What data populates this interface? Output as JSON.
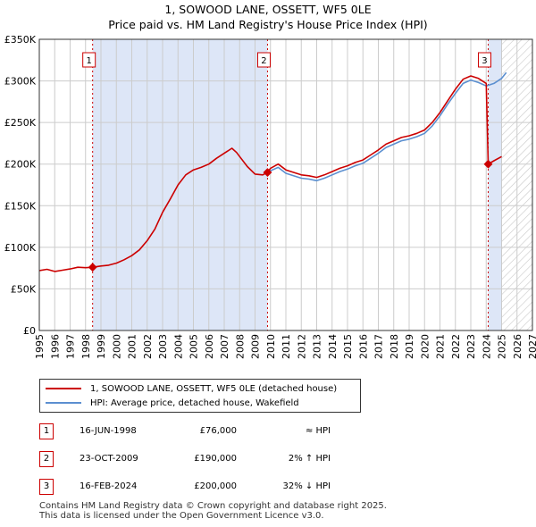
{
  "chart_data": {
    "type": "line",
    "title": "1, SOWOOD LANE, OSSETT, WF5 0LE",
    "subtitle": "Price paid vs. HM Land Registry's House Price Index (HPI)",
    "xlim": [
      1995,
      2027
    ],
    "ylim": [
      0,
      350000
    ],
    "y_ticks": [
      {
        "value": 0,
        "label": "£0"
      },
      {
        "value": 50000,
        "label": "£50K"
      },
      {
        "value": 100000,
        "label": "£100K"
      },
      {
        "value": 150000,
        "label": "£150K"
      },
      {
        "value": 200000,
        "label": "£200K"
      },
      {
        "value": 250000,
        "label": "£250K"
      },
      {
        "value": 300000,
        "label": "£300K"
      },
      {
        "value": 350000,
        "label": "£350K"
      }
    ],
    "x_ticks": [
      "1995",
      "1996",
      "1997",
      "1998",
      "1999",
      "2000",
      "2001",
      "2002",
      "2003",
      "2004",
      "2005",
      "2006",
      "2007",
      "2008",
      "2009",
      "2010",
      "2011",
      "2012",
      "2013",
      "2014",
      "2015",
      "2016",
      "2017",
      "2018",
      "2019",
      "2020",
      "2021",
      "2022",
      "2023",
      "2024",
      "2025",
      "2026",
      "2027"
    ],
    "shaded_regions": [
      {
        "from": 1998.46,
        "to": 2009.81
      },
      {
        "from": 2024.13,
        "to": 2025.0
      }
    ],
    "hatched_future_from": 2025.0,
    "series": [
      {
        "name": "1, SOWOOD LANE, OSSETT, WF5 0LE (detached house)",
        "color": "#cc0000",
        "points": [
          [
            1995.0,
            72000
          ],
          [
            1995.5,
            73500
          ],
          [
            1996.0,
            71000
          ],
          [
            1996.5,
            72500
          ],
          [
            1997.0,
            74000
          ],
          [
            1997.5,
            76000
          ],
          [
            1998.0,
            75500
          ],
          [
            1998.46,
            76000
          ],
          [
            1999.0,
            77500
          ],
          [
            1999.5,
            78500
          ],
          [
            2000.0,
            81000
          ],
          [
            2000.5,
            85000
          ],
          [
            2001.0,
            90000
          ],
          [
            2001.5,
            97000
          ],
          [
            2002.0,
            108000
          ],
          [
            2002.5,
            122000
          ],
          [
            2003.0,
            142000
          ],
          [
            2003.5,
            158000
          ],
          [
            2004.0,
            175000
          ],
          [
            2004.5,
            187000
          ],
          [
            2005.0,
            193000
          ],
          [
            2005.5,
            196000
          ],
          [
            2006.0,
            200000
          ],
          [
            2006.5,
            207000
          ],
          [
            2007.0,
            213000
          ],
          [
            2007.5,
            219000
          ],
          [
            2007.8,
            214000
          ],
          [
            2008.0,
            209000
          ],
          [
            2008.5,
            197000
          ],
          [
            2009.0,
            188000
          ],
          [
            2009.5,
            187000
          ],
          [
            2009.81,
            190000
          ],
          [
            2010.0,
            195000
          ],
          [
            2010.5,
            200000
          ],
          [
            2011.0,
            193000
          ],
          [
            2011.5,
            190000
          ],
          [
            2012.0,
            187000
          ],
          [
            2012.5,
            186000
          ],
          [
            2013.0,
            184000
          ],
          [
            2013.5,
            187000
          ],
          [
            2014.0,
            191000
          ],
          [
            2014.5,
            195000
          ],
          [
            2015.0,
            198000
          ],
          [
            2015.5,
            202000
          ],
          [
            2016.0,
            205000
          ],
          [
            2016.5,
            211000
          ],
          [
            2017.0,
            217000
          ],
          [
            2017.5,
            224000
          ],
          [
            2018.0,
            228000
          ],
          [
            2018.5,
            232000
          ],
          [
            2019.0,
            234000
          ],
          [
            2019.5,
            237000
          ],
          [
            2020.0,
            241000
          ],
          [
            2020.5,
            250000
          ],
          [
            2021.0,
            262000
          ],
          [
            2021.5,
            276000
          ],
          [
            2022.0,
            290000
          ],
          [
            2022.5,
            302000
          ],
          [
            2023.0,
            306000
          ],
          [
            2023.5,
            303000
          ],
          [
            2024.0,
            297000
          ],
          [
            2024.13,
            200000
          ],
          [
            2024.5,
            204000
          ],
          [
            2025.0,
            209000
          ]
        ]
      },
      {
        "name": "HPI: Average price, detached house, Wakefield",
        "color": "#5b8fd0",
        "points": [
          [
            2009.81,
            186000
          ],
          [
            2010.0,
            192000
          ],
          [
            2010.5,
            196000
          ],
          [
            2011.0,
            189000
          ],
          [
            2011.5,
            186000
          ],
          [
            2012.0,
            183000
          ],
          [
            2012.5,
            182000
          ],
          [
            2013.0,
            180000
          ],
          [
            2013.5,
            183000
          ],
          [
            2014.0,
            187000
          ],
          [
            2014.5,
            191000
          ],
          [
            2015.0,
            194000
          ],
          [
            2015.5,
            198000
          ],
          [
            2016.0,
            201000
          ],
          [
            2016.5,
            207000
          ],
          [
            2017.0,
            213000
          ],
          [
            2017.5,
            220000
          ],
          [
            2018.0,
            224000
          ],
          [
            2018.5,
            228000
          ],
          [
            2019.0,
            230000
          ],
          [
            2019.5,
            233000
          ],
          [
            2020.0,
            237000
          ],
          [
            2020.5,
            246000
          ],
          [
            2021.0,
            258000
          ],
          [
            2021.5,
            272000
          ],
          [
            2022.0,
            285000
          ],
          [
            2022.5,
            297000
          ],
          [
            2023.0,
            301000
          ],
          [
            2023.5,
            298000
          ],
          [
            2024.0,
            294000
          ],
          [
            2024.5,
            297000
          ],
          [
            2025.0,
            303000
          ],
          [
            2025.3,
            310000
          ]
        ]
      }
    ],
    "sales": [
      {
        "id": "1",
        "date": "16-JUN-1998",
        "x": 1998.46,
        "price": 76000,
        "price_label": "£76,000",
        "hpi": "≈ HPI"
      },
      {
        "id": "2",
        "date": "23-OCT-2009",
        "x": 2009.81,
        "price": 190000,
        "price_label": "£190,000",
        "hpi": "2% ↑ HPI"
      },
      {
        "id": "3",
        "date": "16-FEB-2024",
        "x": 2024.13,
        "price": 200000,
        "price_label": "£200,000",
        "hpi": "32% ↓ HPI"
      }
    ],
    "colors": {
      "sales_line": "#cc0000",
      "hpi_line": "#5b8fd0",
      "shade": "#dde6f7",
      "grid": "#cccccc",
      "vline": "#cc0000"
    }
  },
  "footer": {
    "line1": "Contains HM Land Registry data © Crown copyright and database right 2025.",
    "line2": "This data is licensed under the Open Government Licence v3.0."
  }
}
